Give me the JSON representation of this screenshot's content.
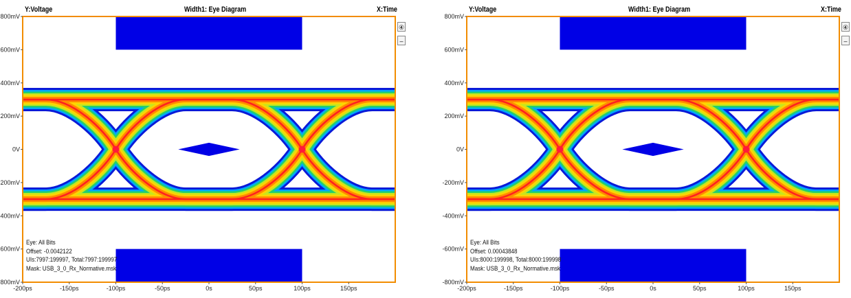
{
  "colors": {
    "frame": "#f28c00",
    "mask": "#0000e6",
    "eye_outer": "#0a1ad8",
    "eye_mid1": "#00a6ff",
    "eye_mid2": "#25d06a",
    "eye_mid3": "#c8e61e",
    "eye_mid4": "#ffd400",
    "eye_core": "#ff8a00",
    "eye_hot": "#ff2020",
    "crossing": "#ff1a3a"
  },
  "chart_data": [
    {
      "type": "eye-diagram",
      "header": {
        "y_label": "Y:Voltage",
        "title": "Width1: Eye Diagram",
        "x_label": "X:Time"
      },
      "x_ticks": [
        "-200ps",
        "-150ps",
        "-100ps",
        "-50ps",
        "0s",
        "50ps",
        "100ps",
        "150ps"
      ],
      "y_ticks": [
        "800mV",
        "600mV",
        "400mV",
        "200mV",
        "0V",
        "-200mV",
        "-400mV",
        "-600mV",
        "-800mV"
      ],
      "xlim": [
        -200,
        200
      ],
      "ylim": [
        -800,
        800
      ],
      "x_unit": "ps",
      "y_unit": "mV",
      "crossings_ps": [
        -100,
        100
      ],
      "rail_levels_mV": [
        300,
        -300
      ],
      "masks": {
        "top_rect": {
          "x": [
            -100,
            100
          ],
          "y": [
            600,
            800
          ]
        },
        "bottom_rect": {
          "x": [
            -100,
            100
          ],
          "y": [
            -800,
            -600
          ]
        },
        "center_diamond": {
          "x": [
            -33,
            33
          ],
          "y": [
            -40,
            40
          ]
        }
      },
      "info": {
        "eye": "Eye: All Bits",
        "offset": "Offset: -0.0042122",
        "uis": "UIs:7997:199997, Total:7997:199997",
        "mask": "Mask: USB_3_0_Rx_Normative.msk"
      },
      "side_buttons": [
        "④",
        "–"
      ]
    },
    {
      "type": "eye-diagram",
      "header": {
        "y_label": "Y:Voltage",
        "title": "Width1: Eye Diagram",
        "x_label": "X:Time"
      },
      "x_ticks": [
        "-200ps",
        "-150ps",
        "-100ps",
        "-50ps",
        "0s",
        "50ps",
        "100ps",
        "150ps"
      ],
      "y_ticks": [
        "800mV",
        "600mV",
        "400mV",
        "200mV",
        "0V",
        "-200mV",
        "-400mV",
        "-600mV",
        "-800mV"
      ],
      "xlim": [
        -200,
        200
      ],
      "ylim": [
        -800,
        800
      ],
      "x_unit": "ps",
      "y_unit": "mV",
      "crossings_ps": [
        -100,
        100
      ],
      "rail_levels_mV": [
        300,
        -300
      ],
      "masks": {
        "top_rect": {
          "x": [
            -100,
            100
          ],
          "y": [
            600,
            800
          ]
        },
        "bottom_rect": {
          "x": [
            -100,
            100
          ],
          "y": [
            -800,
            -600
          ]
        },
        "center_diamond": {
          "x": [
            -33,
            33
          ],
          "y": [
            -40,
            40
          ]
        }
      },
      "info": {
        "eye": "Eye: All Bits",
        "offset": "Offset: 0.00043848",
        "uis": "UIs:8000:199998, Total:8000:199998",
        "mask": "Mask: USB_3_0_Rx_Normative.msk"
      },
      "side_buttons": [
        "④",
        "–"
      ]
    }
  ]
}
